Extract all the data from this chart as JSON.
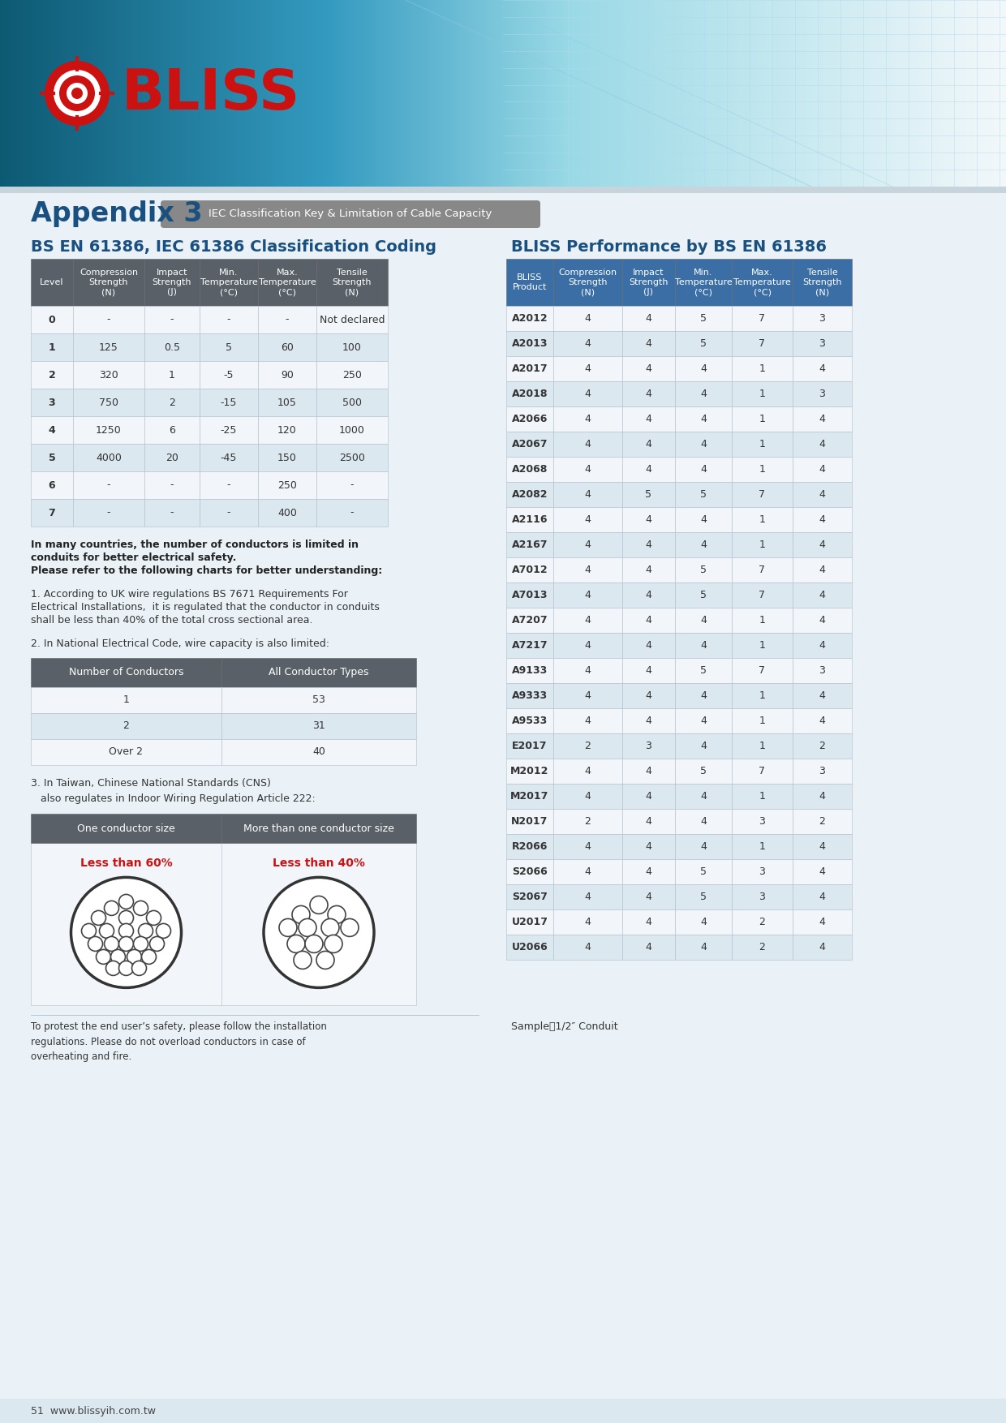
{
  "page_bg_color": "#eaf2f8",
  "appendix_title": "Appendix 3",
  "appendix_subtitle": "IEC Classification Key & Limitation of Cable Capacity",
  "left_section_title": "BS EN 61386, IEC 61386 Classification Coding",
  "right_section_title": "BLISS Performance by BS EN 61386",
  "table1_headers": [
    "Level",
    "Compression\nStrength\n(N)",
    "Impact\nStrength\n(J)",
    "Min.\nTemperature\n(°C)",
    "Max.\nTemperature\n(°C)",
    "Tensile\nStrength\n(N)"
  ],
  "table1_data": [
    [
      "0",
      "-",
      "-",
      "-",
      "-",
      "Not declared"
    ],
    [
      "1",
      "125",
      "0.5",
      "5",
      "60",
      "100"
    ],
    [
      "2",
      "320",
      "1",
      "-5",
      "90",
      "250"
    ],
    [
      "3",
      "750",
      "2",
      "-15",
      "105",
      "500"
    ],
    [
      "4",
      "1250",
      "6",
      "-25",
      "120",
      "1000"
    ],
    [
      "5",
      "4000",
      "20",
      "-45",
      "150",
      "2500"
    ],
    [
      "6",
      "-",
      "-",
      "-",
      "250",
      "-"
    ],
    [
      "7",
      "-",
      "-",
      "-",
      "400",
      "-"
    ]
  ],
  "table2_headers": [
    "BLISS\nProduct",
    "Compression\nStrength\n(N)",
    "Impact\nStrength\n(J)",
    "Min.\nTemperature\n(°C)",
    "Max.\nTemperature\n(°C)",
    "Tensile\nStrength\n(N)"
  ],
  "table2_data": [
    [
      "A2012",
      "4",
      "4",
      "5",
      "7",
      "3"
    ],
    [
      "A2013",
      "4",
      "4",
      "5",
      "7",
      "3"
    ],
    [
      "A2017",
      "4",
      "4",
      "4",
      "1",
      "4"
    ],
    [
      "A2018",
      "4",
      "4",
      "4",
      "1",
      "3"
    ],
    [
      "A2066",
      "4",
      "4",
      "4",
      "1",
      "4"
    ],
    [
      "A2067",
      "4",
      "4",
      "4",
      "1",
      "4"
    ],
    [
      "A2068",
      "4",
      "4",
      "4",
      "1",
      "4"
    ],
    [
      "A2082",
      "4",
      "5",
      "5",
      "7",
      "4"
    ],
    [
      "A2116",
      "4",
      "4",
      "4",
      "1",
      "4"
    ],
    [
      "A2167",
      "4",
      "4",
      "4",
      "1",
      "4"
    ],
    [
      "A7012",
      "4",
      "4",
      "5",
      "7",
      "4"
    ],
    [
      "A7013",
      "4",
      "4",
      "5",
      "7",
      "4"
    ],
    [
      "A7207",
      "4",
      "4",
      "4",
      "1",
      "4"
    ],
    [
      "A7217",
      "4",
      "4",
      "4",
      "1",
      "4"
    ],
    [
      "A9133",
      "4",
      "4",
      "5",
      "7",
      "3"
    ],
    [
      "A9333",
      "4",
      "4",
      "4",
      "1",
      "4"
    ],
    [
      "A9533",
      "4",
      "4",
      "4",
      "1",
      "4"
    ],
    [
      "E2017",
      "2",
      "3",
      "4",
      "1",
      "2"
    ],
    [
      "M2012",
      "4",
      "4",
      "5",
      "7",
      "3"
    ],
    [
      "M2017",
      "4",
      "4",
      "4",
      "1",
      "4"
    ],
    [
      "N2017",
      "2",
      "4",
      "4",
      "3",
      "2"
    ],
    [
      "R2066",
      "4",
      "4",
      "4",
      "1",
      "4"
    ],
    [
      "S2066",
      "4",
      "4",
      "5",
      "3",
      "4"
    ],
    [
      "S2067",
      "4",
      "4",
      "5",
      "3",
      "4"
    ],
    [
      "U2017",
      "4",
      "4",
      "4",
      "2",
      "4"
    ],
    [
      "U2066",
      "4",
      "4",
      "4",
      "2",
      "4"
    ]
  ],
  "table3_headers": [
    "Number of Conductors",
    "All Conductor Types"
  ],
  "table3_data": [
    [
      "1",
      "53"
    ],
    [
      "2",
      "31"
    ],
    [
      "Over 2",
      "40"
    ]
  ],
  "table4_headers": [
    "One conductor size",
    "More than one conductor size"
  ],
  "label_less60": "Less than 60%",
  "label_less40": "Less than 40%",
  "footer_text1": "To protest the end user’s safety, please follow the installation\nregulations. Please do not overload conductors in case of\noverheating and fire.",
  "footer_text2": "Sample：1/2″ Conduit",
  "page_number": "51  www.blissyih.com.tw",
  "table1_header_color": "#5a6068",
  "table2_header_color": "#3a6ea5",
  "table3_header_color": "#5a6068",
  "table4_header_color": "#5a6068"
}
